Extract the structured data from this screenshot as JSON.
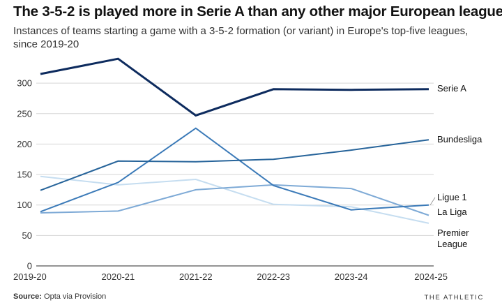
{
  "header": {
    "title": "The 3-5-2 is played more in Serie A than any other major European league",
    "subtitle": "Instances of teams starting a game with a 3-5-2 formation (or variant) in Europe's top-five leagues, since 2019-20"
  },
  "footer": {
    "source_label": "Source:",
    "source_text": "Opta via Provision",
    "brand": "THE ATHLETIC"
  },
  "chart_data": {
    "type": "line",
    "categories": [
      "2019-20",
      "2020-21",
      "2021-22",
      "2022-23",
      "2023-24",
      "2024-25"
    ],
    "ylim": [
      0,
      350
    ],
    "yticks": [
      0,
      50,
      100,
      150,
      200,
      250,
      300
    ],
    "grid": true,
    "legend": "direct labels at right end of lines",
    "series": [
      {
        "name": "Serie A",
        "color": "#0d2b5e",
        "width": 3,
        "values": [
          315,
          340,
          247,
          290,
          289,
          290
        ]
      },
      {
        "name": "Bundesliga",
        "color": "#27649a",
        "width": 2,
        "values": [
          124,
          172,
          171,
          175,
          190,
          207
        ]
      },
      {
        "name": "Ligue 1",
        "color": "#3b7ab8",
        "width": 2,
        "values": [
          89,
          137,
          226,
          132,
          92,
          100
        ]
      },
      {
        "name": "La Liga",
        "color": "#7eaad6",
        "width": 2,
        "values": [
          87,
          90,
          125,
          133,
          127,
          83
        ]
      },
      {
        "name": "Premier League",
        "color": "#c5ddf0",
        "width": 2,
        "values": [
          147,
          133,
          142,
          101,
          97,
          70
        ]
      }
    ]
  }
}
